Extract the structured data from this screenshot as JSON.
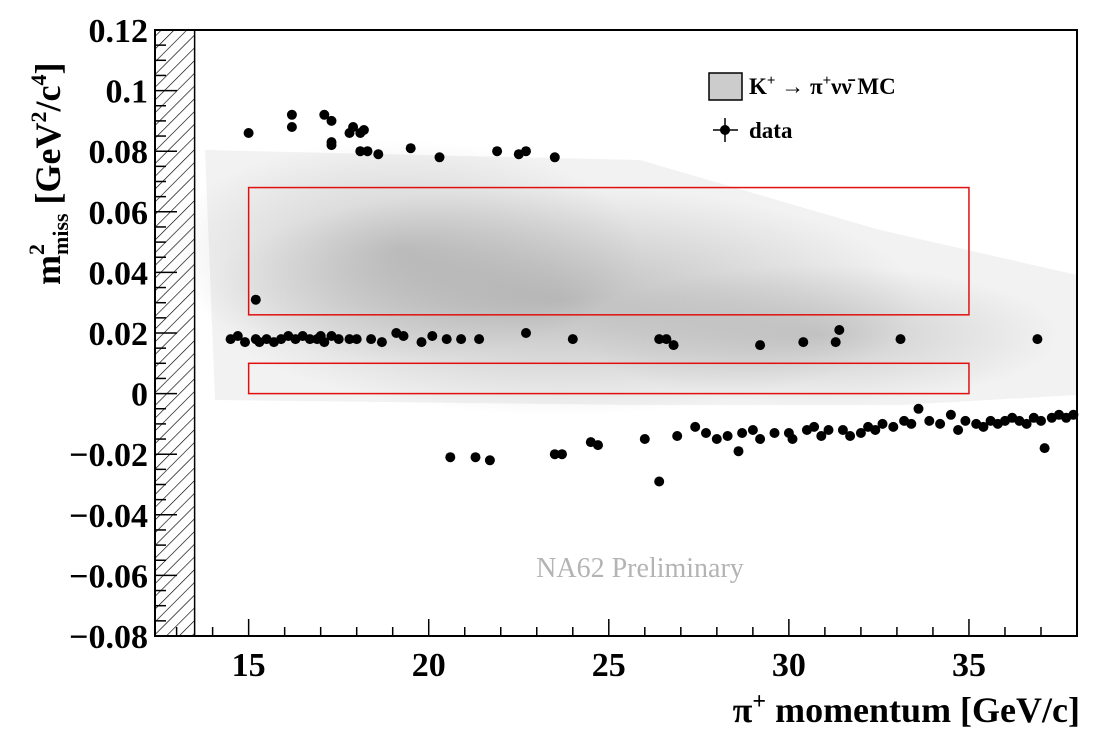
{
  "chart_data": {
    "type": "scatter",
    "xlabel_parts": [
      "π",
      "+",
      " momentum [GeV/c]"
    ],
    "ylabel_parts": {
      "m": "m",
      "sup": "2",
      "sub": "miss",
      "unit": " [GeV",
      "unit_sup1": "2",
      "unit_mid": "/c",
      "unit_sup2": "4",
      "unit_end": "]"
    },
    "xlim": [
      12.4,
      38
    ],
    "ylim": [
      -0.08,
      0.12
    ],
    "x_ticks": [
      15,
      20,
      25,
      30,
      35
    ],
    "x_tick_labels": [
      "15",
      "20",
      "25",
      "30",
      "35"
    ],
    "y_ticks": [
      -0.08,
      -0.06,
      -0.04,
      -0.02,
      0,
      0.02,
      0.04,
      0.06,
      0.08,
      0.1,
      0.12
    ],
    "y_tick_labels": [
      "−0.08",
      "−0.06",
      "−0.04",
      "−0.02",
      "0",
      "0.02",
      "0.04",
      "0.06",
      "0.08",
      "0.1",
      "0.12"
    ],
    "excluded_x_range": [
      12.4,
      13.5
    ],
    "signal_regions": [
      {
        "x": [
          15,
          35
        ],
        "y": [
          0.026,
          0.068
        ]
      },
      {
        "x": [
          15,
          35
        ],
        "y": [
          0.0,
          0.01
        ]
      }
    ],
    "region_color": "#e01010",
    "legend": {
      "position": "top-right",
      "entries": [
        {
          "kind": "box",
          "parts": [
            "K",
            "+",
            " → ",
            "π",
            "+",
            "νν̄ MC"
          ]
        },
        {
          "kind": "marker",
          "label": "data"
        }
      ]
    },
    "watermark": "NA62 Preliminary",
    "series": [
      {
        "name": "data",
        "marker_color": "#000000",
        "points": [
          [
            15.0,
            0.086
          ],
          [
            15.2,
            0.031
          ],
          [
            16.2,
            0.092
          ],
          [
            16.2,
            0.088
          ],
          [
            17.1,
            0.092
          ],
          [
            17.3,
            0.09
          ],
          [
            17.3,
            0.083
          ],
          [
            17.3,
            0.082
          ],
          [
            17.8,
            0.086
          ],
          [
            17.9,
            0.088
          ],
          [
            18.1,
            0.086
          ],
          [
            18.2,
            0.087
          ],
          [
            18.1,
            0.08
          ],
          [
            18.3,
            0.08
          ],
          [
            18.6,
            0.079
          ],
          [
            19.5,
            0.081
          ],
          [
            20.3,
            0.078
          ],
          [
            21.9,
            0.08
          ],
          [
            22.5,
            0.079
          ],
          [
            22.7,
            0.08
          ],
          [
            23.5,
            0.078
          ],
          [
            14.5,
            0.018
          ],
          [
            14.7,
            0.019
          ],
          [
            14.9,
            0.017
          ],
          [
            15.2,
            0.018
          ],
          [
            15.3,
            0.017
          ],
          [
            15.5,
            0.018
          ],
          [
            15.7,
            0.017
          ],
          [
            15.9,
            0.018
          ],
          [
            16.1,
            0.019
          ],
          [
            16.3,
            0.018
          ],
          [
            16.5,
            0.019
          ],
          [
            16.7,
            0.018
          ],
          [
            16.9,
            0.018
          ],
          [
            17.0,
            0.019
          ],
          [
            17.1,
            0.017
          ],
          [
            17.3,
            0.019
          ],
          [
            17.5,
            0.018
          ],
          [
            17.8,
            0.018
          ],
          [
            18.0,
            0.018
          ],
          [
            18.4,
            0.018
          ],
          [
            18.7,
            0.017
          ],
          [
            19.1,
            0.02
          ],
          [
            19.3,
            0.019
          ],
          [
            19.8,
            0.017
          ],
          [
            20.1,
            0.019
          ],
          [
            20.5,
            0.018
          ],
          [
            20.9,
            0.018
          ],
          [
            21.4,
            0.018
          ],
          [
            22.7,
            0.02
          ],
          [
            24.0,
            0.018
          ],
          [
            26.4,
            0.018
          ],
          [
            26.6,
            0.018
          ],
          [
            26.8,
            0.016
          ],
          [
            29.2,
            0.016
          ],
          [
            30.4,
            0.017
          ],
          [
            31.3,
            0.017
          ],
          [
            31.4,
            0.021
          ],
          [
            33.1,
            0.018
          ],
          [
            36.9,
            0.018
          ],
          [
            20.6,
            -0.021
          ],
          [
            21.3,
            -0.021
          ],
          [
            21.7,
            -0.022
          ],
          [
            23.5,
            -0.02
          ],
          [
            23.7,
            -0.02
          ],
          [
            24.5,
            -0.016
          ],
          [
            24.7,
            -0.017
          ],
          [
            26.0,
            -0.015
          ],
          [
            26.4,
            -0.029
          ],
          [
            26.9,
            -0.014
          ],
          [
            27.4,
            -0.011
          ],
          [
            27.7,
            -0.013
          ],
          [
            28.0,
            -0.015
          ],
          [
            28.3,
            -0.014
          ],
          [
            28.6,
            -0.019
          ],
          [
            28.7,
            -0.013
          ],
          [
            29.0,
            -0.012
          ],
          [
            29.2,
            -0.015
          ],
          [
            29.6,
            -0.013
          ],
          [
            30.0,
            -0.013
          ],
          [
            30.1,
            -0.015
          ],
          [
            30.5,
            -0.012
          ],
          [
            30.7,
            -0.011
          ],
          [
            30.9,
            -0.014
          ],
          [
            31.1,
            -0.012
          ],
          [
            31.5,
            -0.012
          ],
          [
            31.7,
            -0.014
          ],
          [
            32.0,
            -0.013
          ],
          [
            32.2,
            -0.011
          ],
          [
            32.4,
            -0.012
          ],
          [
            32.6,
            -0.01
          ],
          [
            32.9,
            -0.011
          ],
          [
            33.2,
            -0.009
          ],
          [
            33.4,
            -0.01
          ],
          [
            33.6,
            -0.005
          ],
          [
            33.9,
            -0.009
          ],
          [
            34.2,
            -0.01
          ],
          [
            34.5,
            -0.007
          ],
          [
            34.7,
            -0.012
          ],
          [
            34.9,
            -0.009
          ],
          [
            35.2,
            -0.01
          ],
          [
            35.4,
            -0.011
          ],
          [
            35.6,
            -0.009
          ],
          [
            35.8,
            -0.01
          ],
          [
            36.0,
            -0.009
          ],
          [
            36.2,
            -0.008
          ],
          [
            36.4,
            -0.009
          ],
          [
            36.6,
            -0.01
          ],
          [
            36.8,
            -0.008
          ],
          [
            37.0,
            -0.009
          ],
          [
            37.1,
            -0.018
          ],
          [
            37.3,
            -0.008
          ],
          [
            37.5,
            -0.007
          ],
          [
            37.7,
            -0.008
          ],
          [
            37.9,
            -0.007
          ]
        ]
      }
    ]
  }
}
